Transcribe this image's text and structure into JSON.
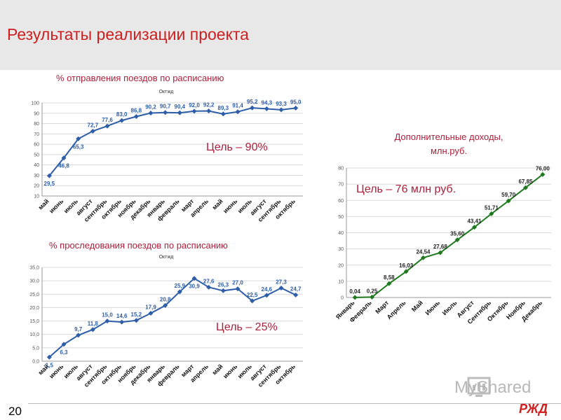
{
  "page_title": "Результаты реализации проекта",
  "page_number": "20",
  "logo_text": "РЖД",
  "watermark": "MyShared",
  "chart_data": [
    {
      "type": "line",
      "title": "% отправления поездов по расписанию",
      "series_label": "Октжд",
      "goal": "Цель – 90%",
      "categories": [
        "май",
        "июнь",
        "июль",
        "август",
        "сентябрь",
        "октябрь",
        "ноябрь",
        "декабрь",
        "январь",
        "февраль",
        "март",
        "апрель",
        "май",
        "июнь",
        "июль",
        "август",
        "сентябрь",
        "октябрь"
      ],
      "values": [
        29.5,
        46.8,
        65.3,
        72.7,
        77.6,
        83.0,
        86.8,
        90.2,
        90.7,
        90.4,
        92.0,
        92.2,
        89.3,
        91.4,
        95.2,
        94.3,
        93.3,
        95.0
      ],
      "labels": [
        "29,5",
        "46,8",
        "65,3",
        "72,7",
        "77,6",
        "83,0",
        "86,8",
        "90,2",
        "90,7",
        "90,4",
        "92,0",
        "92,2",
        "89,3",
        "91,4",
        "95,2",
        "94,3",
        "93,3",
        "95,0"
      ],
      "yticks": [
        "10",
        "20",
        "30",
        "40",
        "50",
        "60",
        "70",
        "80",
        "90",
        "100"
      ],
      "ylim": [
        10,
        100
      ],
      "color": "#2e5ea8"
    },
    {
      "type": "line",
      "title": "% проследования поездов по расписанию",
      "series_label": "Октжд",
      "goal": "Цель – 25%",
      "categories": [
        "май",
        "июнь",
        "июль",
        "август",
        "сентябрь",
        "октябрь",
        "ноябрь",
        "декабрь",
        "январь",
        "февраль",
        "март",
        "апрель",
        "май",
        "июнь",
        "июль",
        "август",
        "сентябрь",
        "октябрь"
      ],
      "values": [
        1.5,
        6.3,
        9.7,
        11.8,
        15.0,
        14.6,
        15.2,
        17.9,
        20.8,
        25.9,
        30.9,
        27.6,
        26.3,
        27.0,
        22.5,
        24.6,
        27.3,
        24.7
      ],
      "labels": [
        "1,5",
        "6,3",
        "9,7",
        "11,8",
        "15,0",
        "14,6",
        "15,2",
        "17,9",
        "20,8",
        "25,9",
        "30,9",
        "27,6",
        "26,3",
        "27,0",
        "22,5",
        "24,6",
        "27,3",
        "24,7"
      ],
      "yticks": [
        "0,0",
        "5,0",
        "10,0",
        "15,0",
        "20,0",
        "25,0",
        "30,0",
        "35,0"
      ],
      "ylim": [
        0,
        35
      ],
      "color": "#2e5ea8"
    },
    {
      "type": "line",
      "title": "Дополнительные доходы,",
      "subtitle": "млн.руб.",
      "goal": "Цель – 76 млн руб.",
      "categories": [
        "Январь",
        "Февраль",
        "Март",
        "Апрель",
        "Май",
        "Июнь",
        "Июль",
        "Август",
        "Сентябрь",
        "Октябрь",
        "Ноябрь",
        "Декабрь"
      ],
      "values": [
        0.04,
        0.25,
        8.58,
        16.03,
        24.54,
        27.68,
        35.6,
        43.41,
        51.71,
        59.7,
        67.85,
        76.0
      ],
      "labels": [
        "0,04",
        "0,25",
        "8,58",
        "16,03",
        "24,54",
        "27,68",
        "35,60",
        "43,41",
        "51,71",
        "59,70",
        "67,85",
        "76,00"
      ],
      "yticks": [
        "0",
        "10",
        "20",
        "30",
        "40",
        "50",
        "60",
        "70",
        "80"
      ],
      "ylim": [
        0,
        80
      ],
      "color": "#1f7a1f"
    }
  ]
}
